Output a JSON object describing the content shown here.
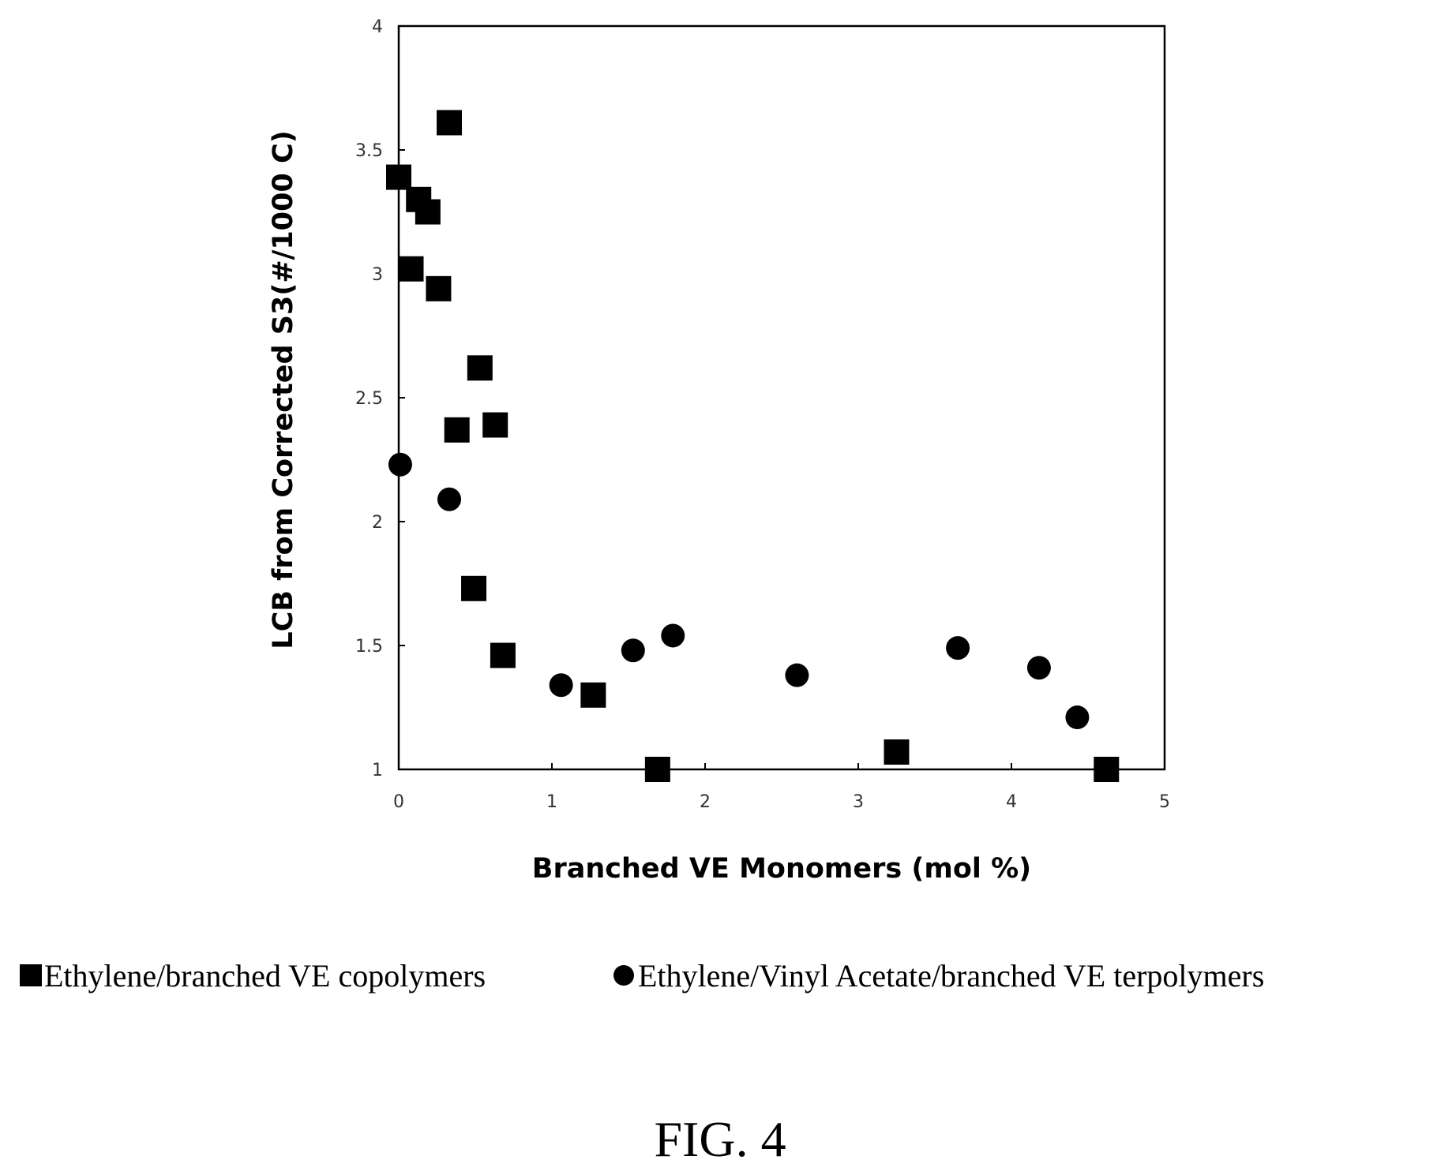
{
  "chart_data": {
    "type": "scatter",
    "xlabel": "Branched VE Monomers (mol %)",
    "ylabel": "LCB from Corrected S3(#/1000 C)",
    "xlim": [
      0,
      5
    ],
    "ylim": [
      1,
      4
    ],
    "x_ticks": [
      "0",
      "1",
      "2",
      "3",
      "4",
      "5"
    ],
    "y_ticks": [
      "1",
      "1.5",
      "2",
      "2.5",
      "3",
      "3.5",
      "4"
    ],
    "grid": false,
    "legend_position": "bottom",
    "series": [
      {
        "name": "Ethylene/branched VE copolymers",
        "marker": "square",
        "color": "#000000",
        "points": [
          {
            "x": 0.0,
            "y": 3.39
          },
          {
            "x": 0.33,
            "y": 3.61
          },
          {
            "x": 0.13,
            "y": 3.3
          },
          {
            "x": 0.19,
            "y": 3.25
          },
          {
            "x": 0.08,
            "y": 3.02
          },
          {
            "x": 0.26,
            "y": 2.94
          },
          {
            "x": 0.53,
            "y": 2.62
          },
          {
            "x": 0.38,
            "y": 2.37
          },
          {
            "x": 0.63,
            "y": 2.39
          },
          {
            "x": 0.49,
            "y": 1.73
          },
          {
            "x": 0.68,
            "y": 1.46
          },
          {
            "x": 1.27,
            "y": 1.3
          },
          {
            "x": 1.69,
            "y": 1.0
          },
          {
            "x": 3.25,
            "y": 1.07
          },
          {
            "x": 4.62,
            "y": 1.0
          }
        ]
      },
      {
        "name": "Ethylene/Vinyl Acetate/branched VE terpolymers",
        "marker": "circle",
        "color": "#000000",
        "points": [
          {
            "x": 0.01,
            "y": 2.23
          },
          {
            "x": 0.33,
            "y": 2.09
          },
          {
            "x": 1.06,
            "y": 1.34
          },
          {
            "x": 1.53,
            "y": 1.48
          },
          {
            "x": 1.79,
            "y": 1.54
          },
          {
            "x": 2.6,
            "y": 1.38
          },
          {
            "x": 3.65,
            "y": 1.49
          },
          {
            "x": 4.18,
            "y": 1.41
          },
          {
            "x": 4.43,
            "y": 1.21
          }
        ]
      }
    ]
  },
  "figure_caption": "FIG. 4"
}
